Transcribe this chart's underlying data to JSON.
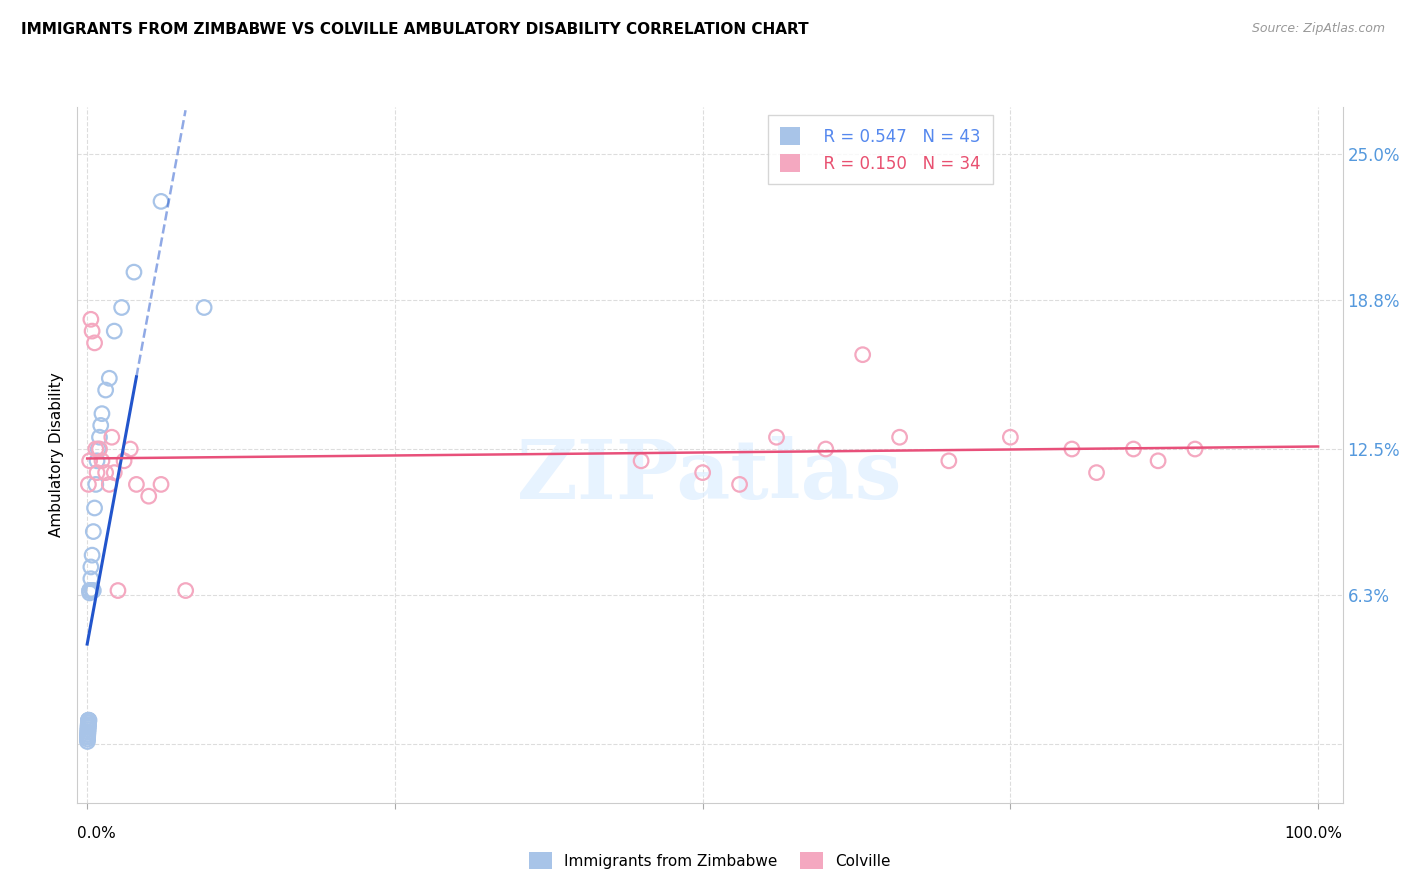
{
  "title": "IMMIGRANTS FROM ZIMBABWE VS COLVILLE AMBULATORY DISABILITY CORRELATION CHART",
  "source": "Source: ZipAtlas.com",
  "ylabel": "Ambulatory Disability",
  "ytick_vals": [
    0.0,
    0.063,
    0.125,
    0.188,
    0.25
  ],
  "ytick_labels": [
    "",
    "6.3%",
    "12.5%",
    "18.8%",
    "25.0%"
  ],
  "legend_r1": "R = 0.547",
  "legend_n1": "N = 43",
  "legend_r2": "R = 0.150",
  "legend_n2": "N = 34",
  "blue_marker_color": "#A8C4E8",
  "pink_marker_color": "#F4A8C0",
  "blue_line_color": "#2255CC",
  "pink_line_color": "#E8507A",
  "watermark": "ZIPatlas",
  "blue_x": [
    0.0002,
    0.0003,
    0.0003,
    0.0004,
    0.0004,
    0.0005,
    0.0005,
    0.0006,
    0.0006,
    0.0007,
    0.0007,
    0.0008,
    0.0008,
    0.0009,
    0.001,
    0.001,
    0.001,
    0.001,
    0.001,
    0.0015,
    0.002,
    0.002,
    0.002,
    0.003,
    0.003,
    0.004,
    0.004,
    0.005,
    0.005,
    0.006,
    0.007,
    0.008,
    0.009,
    0.01,
    0.011,
    0.012,
    0.015,
    0.018,
    0.022,
    0.028,
    0.038,
    0.06,
    0.095
  ],
  "blue_y": [
    0.001,
    0.002,
    0.003,
    0.003,
    0.004,
    0.004,
    0.005,
    0.005,
    0.006,
    0.006,
    0.007,
    0.007,
    0.008,
    0.008,
    0.008,
    0.009,
    0.009,
    0.01,
    0.01,
    0.01,
    0.064,
    0.065,
    0.065,
    0.07,
    0.075,
    0.08,
    0.065,
    0.09,
    0.065,
    0.1,
    0.11,
    0.12,
    0.125,
    0.13,
    0.135,
    0.14,
    0.15,
    0.155,
    0.175,
    0.185,
    0.2,
    0.23,
    0.185
  ],
  "pink_x": [
    0.001,
    0.002,
    0.003,
    0.004,
    0.006,
    0.007,
    0.008,
    0.01,
    0.012,
    0.015,
    0.018,
    0.02,
    0.022,
    0.025,
    0.03,
    0.035,
    0.04,
    0.05,
    0.06,
    0.08,
    0.45,
    0.5,
    0.53,
    0.56,
    0.6,
    0.63,
    0.66,
    0.7,
    0.75,
    0.8,
    0.82,
    0.85,
    0.87,
    0.9
  ],
  "pink_y": [
    0.11,
    0.12,
    0.18,
    0.175,
    0.17,
    0.125,
    0.115,
    0.125,
    0.12,
    0.115,
    0.11,
    0.13,
    0.115,
    0.065,
    0.12,
    0.125,
    0.11,
    0.105,
    0.11,
    0.065,
    0.12,
    0.115,
    0.11,
    0.13,
    0.125,
    0.165,
    0.13,
    0.12,
    0.13,
    0.125,
    0.115,
    0.125,
    0.12,
    0.125
  ]
}
